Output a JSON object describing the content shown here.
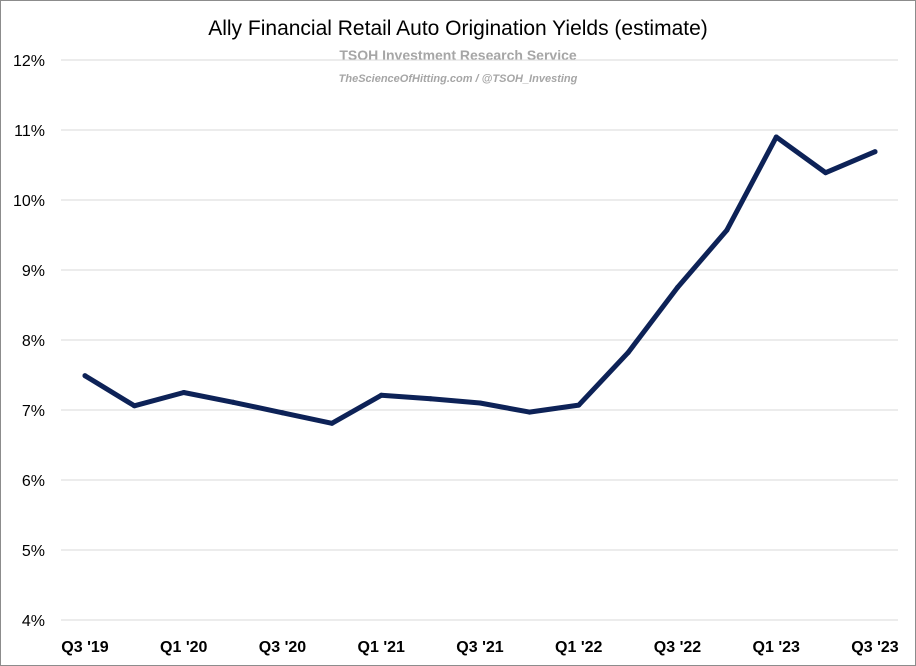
{
  "chart_data": {
    "type": "line",
    "title": "Ally Financial Retail Auto Origination Yields (estimate)",
    "subtitle": "TSOH Investment Research Service",
    "credit": "TheScienceOfHitting.com / @TSOH_Investing",
    "xlabel": "",
    "ylabel": "",
    "x": [
      "Q3 '19",
      "Q4 '19",
      "Q1 '20",
      "Q2 '20",
      "Q3 '20",
      "Q4 '20",
      "Q1 '21",
      "Q2 '21",
      "Q3 '21",
      "Q4 '21",
      "Q1 '22",
      "Q2 '22",
      "Q3 '22",
      "Q4 '22",
      "Q1 '23",
      "Q2 '23",
      "Q3 '23"
    ],
    "xtick_labels": [
      "Q3 '19",
      "",
      "Q1 '20",
      "",
      "Q3 '20",
      "",
      "Q1 '21",
      "",
      "Q3 '21",
      "",
      "Q1 '22",
      "",
      "Q3 '22",
      "",
      "Q1 '23",
      "",
      "Q3 '23"
    ],
    "series": [
      {
        "color": "#0d2257",
        "values": [
          7.49,
          7.06,
          7.25,
          7.11,
          6.96,
          6.81,
          7.21,
          7.16,
          7.1,
          6.97,
          7.07,
          7.82,
          8.75,
          9.57,
          10.9,
          10.39,
          10.69
        ]
      }
    ],
    "ylim": [
      4,
      12
    ],
    "yticks": [
      4,
      5,
      6,
      7,
      8,
      9,
      10,
      11,
      12
    ],
    "ytick_labels": [
      "4%",
      "5%",
      "6%",
      "7%",
      "8%",
      "9%",
      "10%",
      "11%",
      "12%"
    ],
    "grid": true,
    "legend": "none"
  }
}
